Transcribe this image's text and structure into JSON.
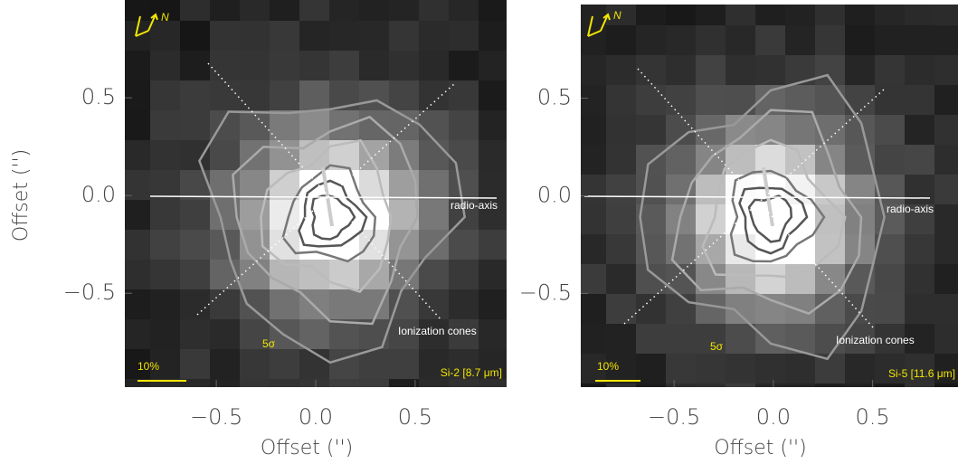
{
  "chart_data": [
    {
      "type": "image",
      "xlabel": "Offset ('')",
      "ylabel": "Offset ('')",
      "xlim": [
        -0.96,
        0.96
      ],
      "ylim": [
        -0.98,
        1.0
      ],
      "xticks": [
        {
          "value": -0.5,
          "label": "−0.5"
        },
        {
          "value": 0,
          "label": "0.0"
        },
        0.5
      ],
      "yticks": [
        {
          "value": -0.5,
          "label": "−0.5"
        },
        {
          "value": 0,
          "label": "0.0"
        },
        0.5
      ],
      "annotations": [
        "N",
        "radio-axis",
        "Ionization cones",
        "5σ",
        "10%",
        "Si-2 [8.7 μm]"
      ]
    },
    {
      "type": "image",
      "xlabel": "Offset ('')",
      "xlim": [
        -0.97,
        0.93
      ],
      "ylim": [
        -0.98,
        0.98
      ],
      "xticks": [
        {
          "value": -0.5,
          "label": "−0.5"
        },
        {
          "value": 0,
          "label": "0.0"
        },
        0.5
      ],
      "yticks": [
        {
          "value": -0.5,
          "label": "−0.5"
        },
        {
          "value": 0,
          "label": "0.0"
        },
        0.5
      ],
      "annotations": [
        "N",
        "radio-axis",
        "Ionization cones",
        "5σ",
        "10%",
        "Si-5 [11.6 μm]"
      ]
    }
  ]
}
